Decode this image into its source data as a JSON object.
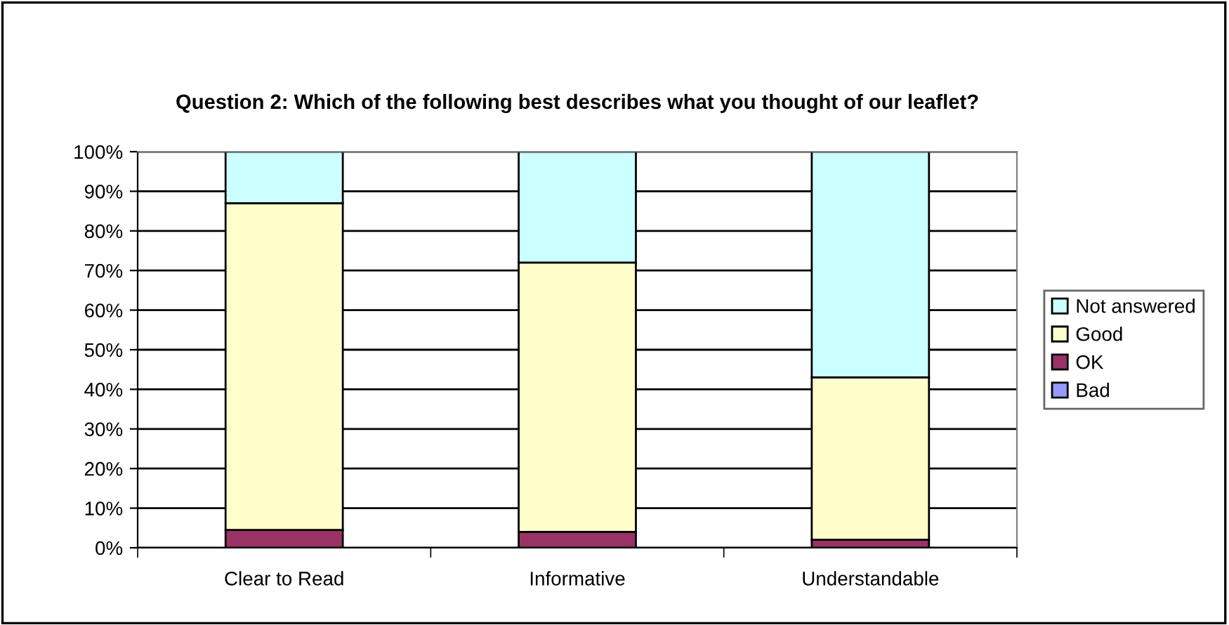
{
  "chart_data": {
    "type": "bar",
    "title": "Question 2: Which of the following best describes what you thought of our leaflet?",
    "categories": [
      "Clear to Read",
      "Informative",
      "Understandable"
    ],
    "stacked": true,
    "series": [
      {
        "name": "Bad",
        "color": "#9999ff",
        "values": [
          0,
          0,
          0
        ]
      },
      {
        "name": "OK",
        "color": "#993366",
        "values": [
          4.5,
          4,
          2
        ]
      },
      {
        "name": "Good",
        "color": "#ffffcc",
        "values": [
          82.5,
          68,
          41
        ]
      },
      {
        "name": "Not answered",
        "color": "#ccffff",
        "values": [
          13,
          28,
          57
        ]
      }
    ],
    "ylim": [
      0,
      100
    ],
    "yticks": [
      {
        "value": 0,
        "label": "0%"
      },
      {
        "value": 10,
        "label": "10%"
      },
      {
        "value": 20,
        "label": "20%"
      },
      {
        "value": 30,
        "label": "30%"
      },
      {
        "value": 40,
        "label": "40%"
      },
      {
        "value": 50,
        "label": "50%"
      },
      {
        "value": 60,
        "label": "60%"
      },
      {
        "value": 70,
        "label": "70%"
      },
      {
        "value": 80,
        "label": "80%"
      },
      {
        "value": 90,
        "label": "90%"
      },
      {
        "value": 100,
        "label": "100%"
      }
    ],
    "grid": "y",
    "legend": "right"
  }
}
